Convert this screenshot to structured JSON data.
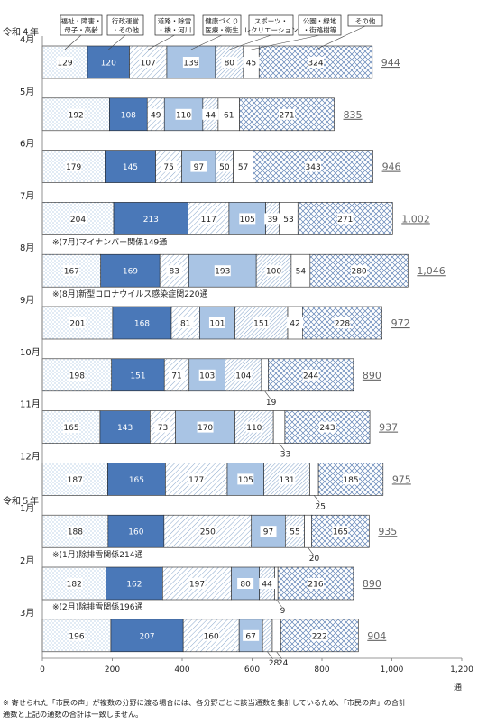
{
  "chart_data": {
    "type": "bar",
    "orientation": "horizontal",
    "stacked": true,
    "xlim": [
      0,
      1200
    ],
    "x_ticks": [
      "0",
      "200",
      "400",
      "600",
      "800",
      "1,000",
      "1,200"
    ],
    "x_unit": "通",
    "grid": false,
    "legend_position": "top",
    "series": [
      {
        "name": "福祉・障害・母子・高齢",
        "pattern": "dots",
        "color": "#b8d3ec"
      },
      {
        "name": "行政運営・その他",
        "pattern": "solid",
        "color": "#4a78b8"
      },
      {
        "name": "道路・除雪・橋・河川",
        "pattern": "diagonal",
        "color": "#8aa8cc"
      },
      {
        "name": "健康づくり・医療・衛生",
        "pattern": "solid",
        "color": "#a9c4e4"
      },
      {
        "name": "スポーツ・レクリエーション",
        "pattern": "diagonal-dense",
        "color": "#8aa8cc"
      },
      {
        "name": "公園・緑地・街路樹等",
        "pattern": "plain",
        "color": "#ffffff"
      },
      {
        "name": "その他",
        "pattern": "crosshatch",
        "color": "#5f82b6"
      }
    ],
    "categories": [
      {
        "year": "令和４年",
        "month": "4月",
        "values": [
          129,
          120,
          107,
          139,
          80,
          45,
          324
        ],
        "total": "944"
      },
      {
        "year": "",
        "month": "5月",
        "values": [
          192,
          108,
          49,
          110,
          44,
          61,
          271
        ],
        "total": "835"
      },
      {
        "year": "",
        "month": "6月",
        "values": [
          179,
          145,
          75,
          97,
          50,
          57,
          343
        ],
        "total": "946"
      },
      {
        "year": "",
        "month": "7月",
        "values": [
          204,
          213,
          117,
          105,
          39,
          53,
          271
        ],
        "total": "1,002",
        "note": "※(7月)マイナンバー関係149通"
      },
      {
        "year": "",
        "month": "8月",
        "values": [
          167,
          169,
          83,
          193,
          100,
          54,
          280
        ],
        "total": "1,046",
        "note": "※(8月)新型コロナウイルス感染症関220通"
      },
      {
        "year": "",
        "month": "9月",
        "values": [
          201,
          168,
          81,
          101,
          151,
          42,
          228
        ],
        "total": "972"
      },
      {
        "year": "",
        "month": "10月",
        "values": [
          198,
          151,
          71,
          103,
          104,
          19,
          244
        ],
        "total": "890"
      },
      {
        "year": "",
        "month": "11月",
        "values": [
          165,
          143,
          73,
          170,
          110,
          33,
          243
        ],
        "total": "937"
      },
      {
        "year": "",
        "month": "12月",
        "values": [
          187,
          165,
          177,
          105,
          131,
          25,
          185
        ],
        "total": "975"
      },
      {
        "year": "令和５年",
        "month": "1月",
        "values": [
          188,
          160,
          250,
          97,
          55,
          20,
          165
        ],
        "total": "935",
        "note": "※(1月)除排雪関係214通"
      },
      {
        "year": "",
        "month": "2月",
        "values": [
          182,
          162,
          197,
          80,
          44,
          9,
          216
        ],
        "total": "890",
        "note": "※(2月)除排雪関係196通"
      },
      {
        "year": "",
        "month": "3月",
        "values": [
          196,
          207,
          160,
          67,
          28,
          24,
          222
        ],
        "total": "904"
      }
    ],
    "legend_labels": [
      [
        "福祉・障害・",
        "母子・高齢"
      ],
      [
        "行政運営",
        "・その他"
      ],
      [
        "道路・除雪",
        "・橋・河川"
      ],
      [
        "健康づくり",
        "医療・衛生"
      ],
      [
        "スポーツ・",
        "レクリエーション"
      ],
      [
        "公園・緑地",
        "・街路樹等"
      ],
      [
        "その他"
      ]
    ],
    "footnote": [
      "※ 寄せられた「市民の声」が複数の分野に渡る場合には、各分野ごとに該当通数を集計しているため、「市民の声」の合計",
      "通数と上記の通数の合計は一致しません。"
    ]
  }
}
